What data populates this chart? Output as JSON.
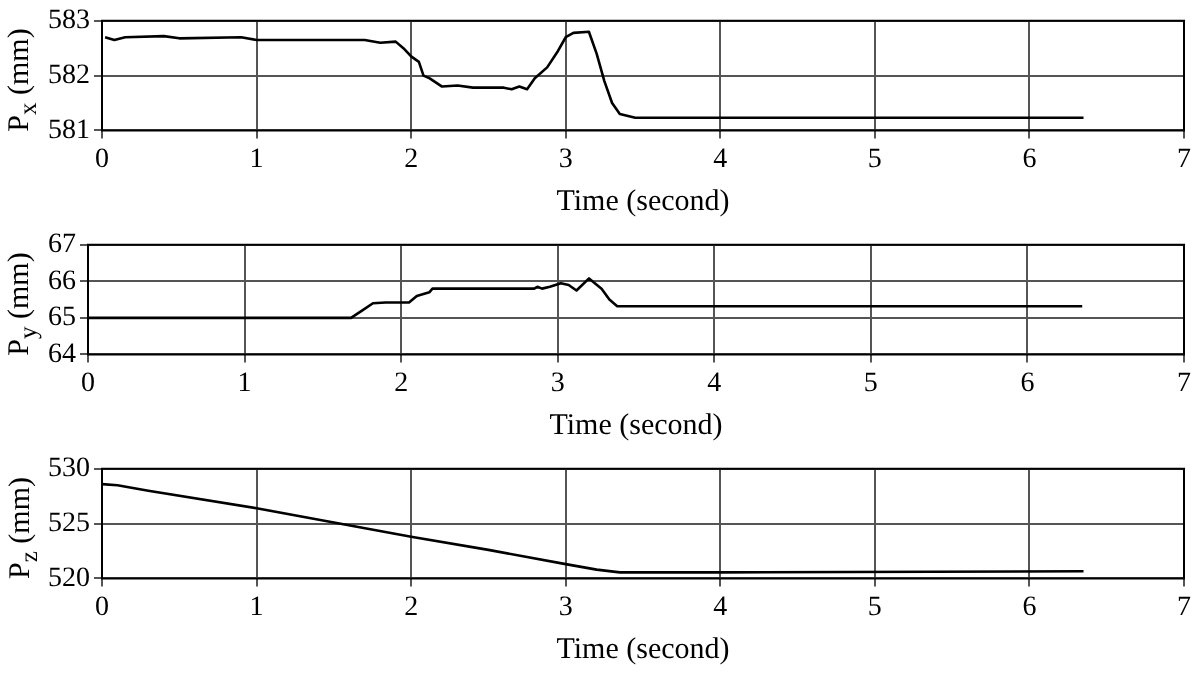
{
  "chart_data": [
    {
      "type": "line",
      "xlabel": "Time (second)",
      "ylabel": "P$_{x}$ (mm)",
      "xlim": [
        0,
        7
      ],
      "xticks": [
        0,
        1,
        2,
        3,
        4,
        5,
        6,
        7
      ],
      "ylim": [
        581,
        583
      ],
      "yticks": [
        581,
        582,
        583
      ],
      "grid": true,
      "line_style": "solid",
      "marker": "none",
      "series": [
        {
          "color": "#000000",
          "x": [
            0.02,
            0.08,
            0.15,
            0.4,
            0.5,
            0.9,
            1.0,
            1.7,
            1.8,
            1.9,
            1.95,
            2.0,
            2.05,
            2.08,
            2.12,
            2.2,
            2.3,
            2.4,
            2.6,
            2.65,
            2.7,
            2.75,
            2.8,
            2.88,
            2.95,
            3.0,
            3.05,
            3.15,
            3.2,
            3.25,
            3.3,
            3.35,
            3.45,
            4.0,
            6.35
          ],
          "values": [
            582.7,
            582.65,
            582.7,
            582.72,
            582.68,
            582.7,
            582.65,
            582.65,
            582.6,
            582.62,
            582.5,
            582.35,
            582.25,
            582.0,
            581.95,
            581.8,
            581.82,
            581.78,
            581.78,
            581.75,
            581.8,
            581.75,
            581.95,
            582.15,
            582.45,
            582.7,
            582.78,
            582.8,
            582.4,
            581.9,
            581.5,
            581.3,
            581.23,
            581.23,
            581.23
          ]
        }
      ]
    },
    {
      "type": "line",
      "xlabel": "Time (second)",
      "ylabel": "P$_{y}$ (mm)",
      "xlim": [
        0,
        7
      ],
      "xticks": [
        0,
        1,
        2,
        3,
        4,
        5,
        6,
        7
      ],
      "ylim": [
        64,
        67
      ],
      "yticks": [
        64,
        65,
        66,
        67
      ],
      "grid": true,
      "line_style": "solid",
      "marker": "none",
      "series": [
        {
          "color": "#000000",
          "x": [
            0,
            1.68,
            1.75,
            1.82,
            1.9,
            2.05,
            2.1,
            2.18,
            2.2,
            2.85,
            2.87,
            2.9,
            2.95,
            3.02,
            3.07,
            3.12,
            3.2,
            3.28,
            3.33,
            3.38,
            3.5,
            6.35
          ],
          "values": [
            65,
            65,
            65.2,
            65.4,
            65.42,
            65.42,
            65.6,
            65.7,
            65.8,
            65.8,
            65.85,
            65.8,
            65.85,
            65.95,
            65.9,
            65.75,
            66.08,
            65.8,
            65.5,
            65.32,
            65.32,
            65.32
          ]
        }
      ]
    },
    {
      "type": "line",
      "xlabel": "Time (second)",
      "ylabel": "P$_{z}$ (mm)",
      "xlim": [
        0,
        7
      ],
      "xticks": [
        0,
        1,
        2,
        3,
        4,
        5,
        6,
        7
      ],
      "ylim": [
        520,
        530
      ],
      "yticks": [
        520,
        525,
        530
      ],
      "grid": true,
      "line_style": "solid",
      "marker": "none",
      "series": [
        {
          "color": "#000000",
          "x": [
            0,
            0.1,
            0.3,
            1,
            1.5,
            2,
            2.5,
            3,
            3.2,
            3.35,
            4,
            6.35
          ],
          "values": [
            528.6,
            528.5,
            528,
            526.4,
            525.1,
            523.8,
            522.6,
            521.3,
            520.8,
            520.55,
            520.55,
            520.65
          ]
        }
      ]
    }
  ]
}
